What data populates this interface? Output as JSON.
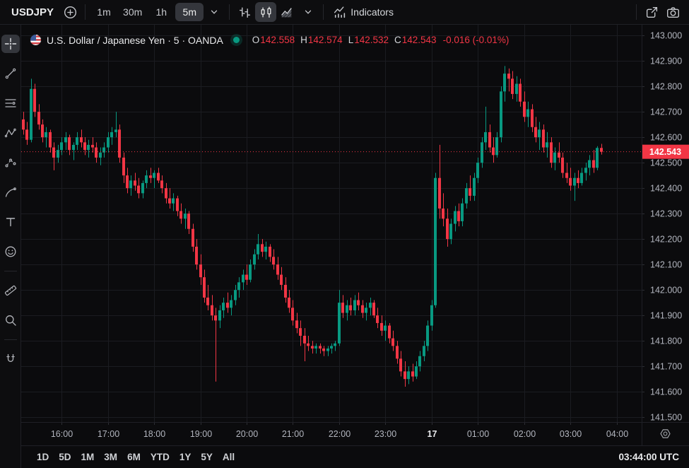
{
  "toolbar": {
    "symbol": "USDJPY",
    "timeframes": [
      "1m",
      "30m",
      "1h",
      "5m"
    ],
    "selected_timeframe": "5m",
    "chart_types": [
      "bars",
      "candles",
      "area"
    ],
    "selected_chart_type": "candles",
    "indicators_label": "Indicators"
  },
  "left_toolbar": {
    "tools": [
      "crosshair",
      "trend-line",
      "fib-retracement",
      "xabcd-pattern",
      "forecast",
      "brush",
      "text",
      "emoji",
      "measure",
      "zoom",
      "magnet"
    ],
    "selected": "crosshair"
  },
  "legend": {
    "title": "U.S. Dollar / Japanese Yen · 5 · OANDA",
    "open_label": "O",
    "open": "142.558",
    "high_label": "H",
    "high": "142.574",
    "low_label": "L",
    "low": "142.532",
    "close_label": "C",
    "close": "142.543",
    "change": "-0.016 (-0.01%)"
  },
  "footer": {
    "ranges": [
      "1D",
      "5D",
      "1M",
      "3M",
      "6M",
      "YTD",
      "1Y",
      "5Y",
      "All"
    ],
    "clock": "03:44:00 UTC"
  },
  "colors": {
    "up": "#089981",
    "down": "#f23645",
    "grid": "#1b1c21",
    "border": "#1f2026",
    "axis_tick": "#2c2d33",
    "axis_text": "#b2b5be",
    "axis_text_bright": "#e9eaec",
    "last_price_bg": "#f23645",
    "status_dot": "#089981",
    "background": "#0b0b0d"
  },
  "chart_data": {
    "type": "candlestick",
    "title": "U.S. Dollar / Japanese Yen",
    "symbol": "USDJPY",
    "exchange": "OANDA",
    "interval": "5m",
    "ylabel": "price",
    "ylim": [
      141.481,
      143.042
    ],
    "price_labels_min": 141.5,
    "price_labels_max": 143.0,
    "price_step": 0.1,
    "slots": 161,
    "grid": true,
    "last_price": 142.543,
    "time_ticks": [
      {
        "label": "16:00",
        "i": 10
      },
      {
        "label": "17:00",
        "i": 22
      },
      {
        "label": "18:00",
        "i": 34
      },
      {
        "label": "19:00",
        "i": 46
      },
      {
        "label": "20:00",
        "i": 58
      },
      {
        "label": "21:00",
        "i": 70
      },
      {
        "label": "22:00",
        "i": 82
      },
      {
        "label": "23:00",
        "i": 94
      },
      {
        "label": "17",
        "i": 106,
        "bold": true
      },
      {
        "label": "01:00",
        "i": 118
      },
      {
        "label": "02:00",
        "i": 130
      },
      {
        "label": "03:00",
        "i": 142
      },
      {
        "label": "04:00",
        "i": 154
      }
    ],
    "start_time": "15:10",
    "candles": [
      [
        142.67,
        142.7,
        142.61,
        142.63
      ],
      [
        142.63,
        142.66,
        142.57,
        142.59
      ],
      [
        142.59,
        142.83,
        142.58,
        142.79
      ],
      [
        142.79,
        142.81,
        142.68,
        142.7
      ],
      [
        142.7,
        142.73,
        142.63,
        142.65
      ],
      [
        142.65,
        142.67,
        142.58,
        142.6
      ],
      [
        142.6,
        142.64,
        142.56,
        142.62
      ],
      [
        142.62,
        142.63,
        142.54,
        142.56
      ],
      [
        142.56,
        142.58,
        142.47,
        142.52
      ],
      [
        142.52,
        142.57,
        142.5,
        142.55
      ],
      [
        142.55,
        142.6,
        142.53,
        142.58
      ],
      [
        142.58,
        142.62,
        142.55,
        142.6
      ],
      [
        142.6,
        142.61,
        142.53,
        142.55
      ],
      [
        142.55,
        142.58,
        142.51,
        142.57
      ],
      [
        142.57,
        142.62,
        142.55,
        142.6
      ],
      [
        142.6,
        142.63,
        142.56,
        142.58
      ],
      [
        142.58,
        142.6,
        142.53,
        142.55
      ],
      [
        142.55,
        142.59,
        142.52,
        142.57
      ],
      [
        142.57,
        142.6,
        142.54,
        142.56
      ],
      [
        142.56,
        142.58,
        142.5,
        142.52
      ],
      [
        142.52,
        142.56,
        142.49,
        142.54
      ],
      [
        142.54,
        142.58,
        142.52,
        142.56
      ],
      [
        142.56,
        142.62,
        142.54,
        142.6
      ],
      [
        142.6,
        142.64,
        142.57,
        142.62
      ],
      [
        142.62,
        142.7,
        142.6,
        142.63
      ],
      [
        142.63,
        142.65,
        142.5,
        142.52
      ],
      [
        142.52,
        142.54,
        142.42,
        142.45
      ],
      [
        142.45,
        142.48,
        142.38,
        142.4
      ],
      [
        142.4,
        142.45,
        142.37,
        142.43
      ],
      [
        142.43,
        142.46,
        142.39,
        142.41
      ],
      [
        142.41,
        142.44,
        142.36,
        142.38
      ],
      [
        142.38,
        142.43,
        142.36,
        142.42
      ],
      [
        142.42,
        142.47,
        142.4,
        142.45
      ],
      [
        142.45,
        142.48,
        142.42,
        142.44
      ],
      [
        142.44,
        142.47,
        142.4,
        142.46
      ],
      [
        142.46,
        142.48,
        142.42,
        142.43
      ],
      [
        142.43,
        142.45,
        142.38,
        142.4
      ],
      [
        142.4,
        142.42,
        142.34,
        142.36
      ],
      [
        142.36,
        142.4,
        142.32,
        142.34
      ],
      [
        142.34,
        142.38,
        142.31,
        142.36
      ],
      [
        142.36,
        142.37,
        142.29,
        142.31
      ],
      [
        142.31,
        142.34,
        142.26,
        142.28
      ],
      [
        142.28,
        142.32,
        142.24,
        142.3
      ],
      [
        142.3,
        142.31,
        142.22,
        142.24
      ],
      [
        142.24,
        142.26,
        142.15,
        142.17
      ],
      [
        142.17,
        142.2,
        142.08,
        142.1
      ],
      [
        142.1,
        142.14,
        142.02,
        142.05
      ],
      [
        142.05,
        142.08,
        141.95,
        141.97
      ],
      [
        141.97,
        142.02,
        141.92,
        141.94
      ],
      [
        141.94,
        141.98,
        141.88,
        141.9
      ],
      [
        141.9,
        141.93,
        141.64,
        141.88
      ],
      [
        141.88,
        141.94,
        141.85,
        141.92
      ],
      [
        141.92,
        141.97,
        141.89,
        141.95
      ],
      [
        141.95,
        141.99,
        141.91,
        141.93
      ],
      [
        141.93,
        141.98,
        141.9,
        141.96
      ],
      [
        141.96,
        142.02,
        141.94,
        142.0
      ],
      [
        142.0,
        142.05,
        141.97,
        142.03
      ],
      [
        142.03,
        142.08,
        142.0,
        142.06
      ],
      [
        142.06,
        142.1,
        142.02,
        142.04
      ],
      [
        142.04,
        142.12,
        142.03,
        142.1
      ],
      [
        142.1,
        142.16,
        142.08,
        142.14
      ],
      [
        142.14,
        142.22,
        142.12,
        142.18
      ],
      [
        142.18,
        142.2,
        142.13,
        142.15
      ],
      [
        142.15,
        142.19,
        142.12,
        142.17
      ],
      [
        142.17,
        142.18,
        142.11,
        142.13
      ],
      [
        142.13,
        142.16,
        142.08,
        142.1
      ],
      [
        142.1,
        142.13,
        142.04,
        142.06
      ],
      [
        142.06,
        142.09,
        142.0,
        142.02
      ],
      [
        142.02,
        142.05,
        141.95,
        141.97
      ],
      [
        141.97,
        142.0,
        141.91,
        141.93
      ],
      [
        141.93,
        141.96,
        141.86,
        141.88
      ],
      [
        141.88,
        141.91,
        141.83,
        141.85
      ],
      [
        141.85,
        141.88,
        141.78,
        141.82
      ],
      [
        141.82,
        141.85,
        141.72,
        141.79
      ],
      [
        141.79,
        141.82,
        141.76,
        141.78
      ],
      [
        141.78,
        141.8,
        141.75,
        141.77
      ],
      [
        141.77,
        141.79,
        141.75,
        141.78
      ],
      [
        141.78,
        141.79,
        141.75,
        141.77
      ],
      [
        141.77,
        141.78,
        141.74,
        141.76
      ],
      [
        141.76,
        141.78,
        141.74,
        141.77
      ],
      [
        141.77,
        141.79,
        141.75,
        141.78
      ],
      [
        141.78,
        141.8,
        141.76,
        141.79
      ],
      [
        141.79,
        142.0,
        141.78,
        141.95
      ],
      [
        141.95,
        141.98,
        141.89,
        141.91
      ],
      [
        141.91,
        141.96,
        141.88,
        141.94
      ],
      [
        141.94,
        141.97,
        141.9,
        141.92
      ],
      [
        141.92,
        141.98,
        141.9,
        141.96
      ],
      [
        141.96,
        141.99,
        141.92,
        141.94
      ],
      [
        141.94,
        141.96,
        141.89,
        141.91
      ],
      [
        141.91,
        141.95,
        141.88,
        141.93
      ],
      [
        141.93,
        141.97,
        141.9,
        141.95
      ],
      [
        141.95,
        141.96,
        141.89,
        141.9
      ],
      [
        141.9,
        141.93,
        141.85,
        141.87
      ],
      [
        141.87,
        141.9,
        141.82,
        141.84
      ],
      [
        141.84,
        141.88,
        141.8,
        141.86
      ],
      [
        141.86,
        141.87,
        141.79,
        141.81
      ],
      [
        141.81,
        141.84,
        141.76,
        141.78
      ],
      [
        141.78,
        141.8,
        141.71,
        141.73
      ],
      [
        141.73,
        141.76,
        141.66,
        141.68
      ],
      [
        141.68,
        141.72,
        141.62,
        141.65
      ],
      [
        141.65,
        141.7,
        141.63,
        141.68
      ],
      [
        141.68,
        141.71,
        141.64,
        141.66
      ],
      [
        141.66,
        141.72,
        141.65,
        141.7
      ],
      [
        141.7,
        141.76,
        141.68,
        141.74
      ],
      [
        141.74,
        141.8,
        141.72,
        141.78
      ],
      [
        141.78,
        141.88,
        141.76,
        141.86
      ],
      [
        141.86,
        141.96,
        141.84,
        141.94
      ],
      [
        141.94,
        142.46,
        141.93,
        142.44
      ],
      [
        142.44,
        142.57,
        142.28,
        142.32
      ],
      [
        142.32,
        142.38,
        142.25,
        142.28
      ],
      [
        142.28,
        142.32,
        142.17,
        142.2
      ],
      [
        142.2,
        142.28,
        142.18,
        142.26
      ],
      [
        142.26,
        142.33,
        142.23,
        142.31
      ],
      [
        142.31,
        142.34,
        142.25,
        142.27
      ],
      [
        142.27,
        142.36,
        142.25,
        142.34
      ],
      [
        142.34,
        142.42,
        142.32,
        142.4
      ],
      [
        142.4,
        142.45,
        142.35,
        142.37
      ],
      [
        142.37,
        142.46,
        142.35,
        142.44
      ],
      [
        142.44,
        142.52,
        142.42,
        142.5
      ],
      [
        142.5,
        142.6,
        142.48,
        142.58
      ],
      [
        142.58,
        142.72,
        142.55,
        142.62
      ],
      [
        142.62,
        142.65,
        142.54,
        142.56
      ],
      [
        142.56,
        142.6,
        142.5,
        142.53
      ],
      [
        142.53,
        142.62,
        142.52,
        142.6
      ],
      [
        142.6,
        142.8,
        142.58,
        142.78
      ],
      [
        142.78,
        142.88,
        142.74,
        142.85
      ],
      [
        142.85,
        142.87,
        142.78,
        142.83
      ],
      [
        142.83,
        142.86,
        142.75,
        142.77
      ],
      [
        142.77,
        142.84,
        142.74,
        142.81
      ],
      [
        142.81,
        142.83,
        142.72,
        142.74
      ],
      [
        142.74,
        142.78,
        142.66,
        142.68
      ],
      [
        142.68,
        142.74,
        142.64,
        142.71
      ],
      [
        142.71,
        142.73,
        142.62,
        142.64
      ],
      [
        142.64,
        142.68,
        142.58,
        142.6
      ],
      [
        142.6,
        142.66,
        142.55,
        142.63
      ],
      [
        142.63,
        142.65,
        142.54,
        142.56
      ],
      [
        142.56,
        142.62,
        142.52,
        142.58
      ],
      [
        142.58,
        142.6,
        142.48,
        142.5
      ],
      [
        142.5,
        142.56,
        142.47,
        142.54
      ],
      [
        142.54,
        142.58,
        142.5,
        142.52
      ],
      [
        142.52,
        142.54,
        142.44,
        142.46
      ],
      [
        142.46,
        142.5,
        142.42,
        142.44
      ],
      [
        142.44,
        142.48,
        142.39,
        142.41
      ],
      [
        142.41,
        142.46,
        142.35,
        142.44
      ],
      [
        142.44,
        142.47,
        142.4,
        142.42
      ],
      [
        142.42,
        142.48,
        142.41,
        142.46
      ],
      [
        142.46,
        142.5,
        142.43,
        142.48
      ],
      [
        142.48,
        142.53,
        142.45,
        142.51
      ],
      [
        142.51,
        142.55,
        142.46,
        142.48
      ],
      [
        142.48,
        142.565,
        142.47,
        142.558
      ],
      [
        142.558,
        142.574,
        142.532,
        142.543
      ]
    ]
  }
}
